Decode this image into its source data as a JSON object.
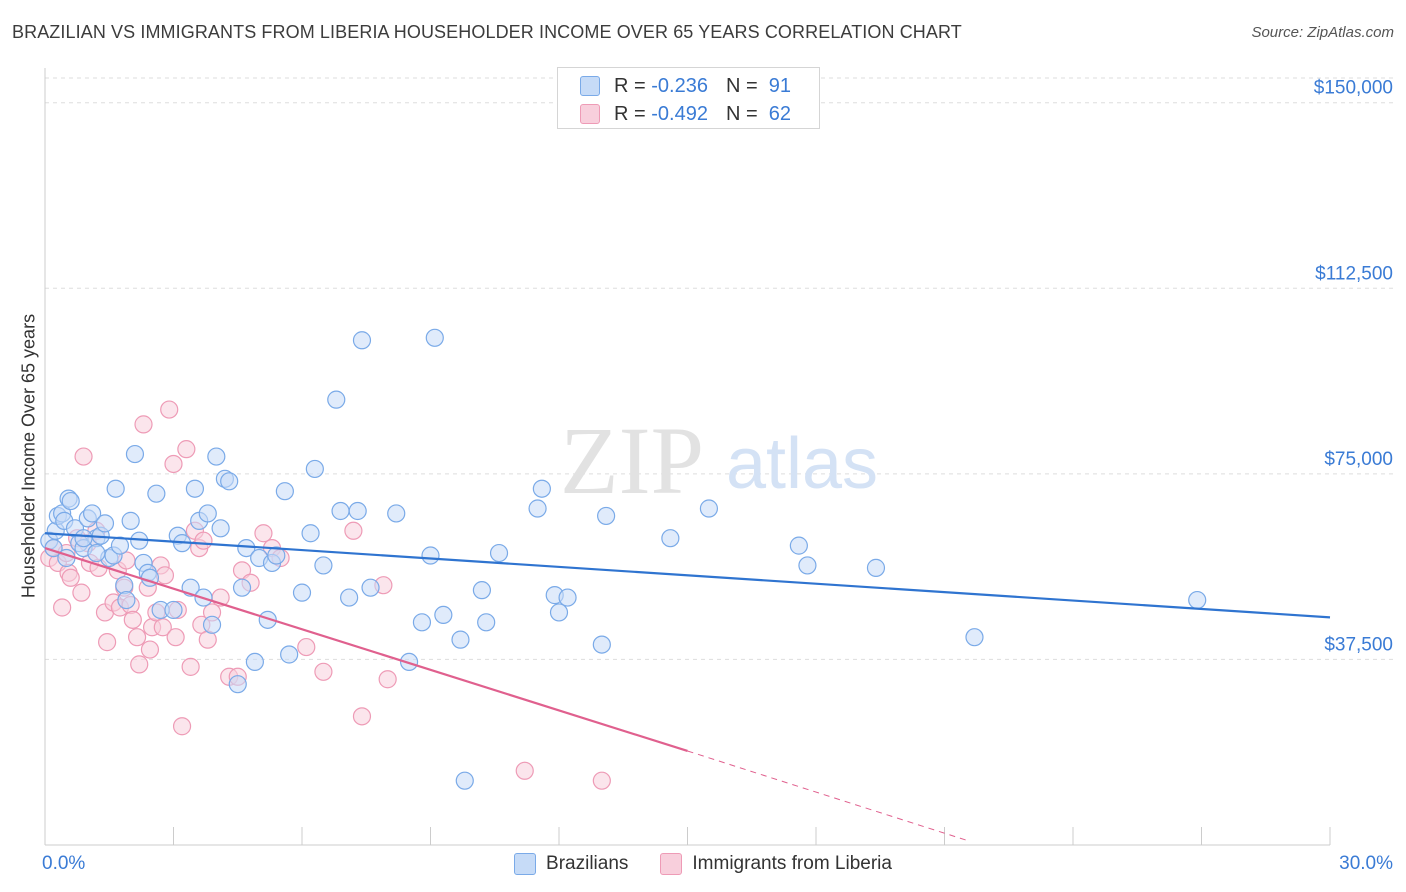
{
  "header": {
    "title": "BRAZILIAN VS IMMIGRANTS FROM LIBERIA HOUSEHOLDER INCOME OVER 65 YEARS CORRELATION CHART",
    "source": "Source: ZipAtlas.com"
  },
  "watermark": {
    "zip": "ZIP",
    "atlas": "atlas"
  },
  "legend": {
    "rows": [
      {
        "r_label": "R =",
        "r_value": "-0.236",
        "n_label": "N =",
        "n_value": "91"
      },
      {
        "r_label": "R =",
        "r_value": "-0.492",
        "n_label": "N =",
        "n_value": "62"
      }
    ]
  },
  "chart_data": {
    "type": "scatter",
    "title": "BRAZILIAN VS IMMIGRANTS FROM LIBERIA HOUSEHOLDER INCOME OVER 65 YEARS CORRELATION CHART",
    "ylabel": "Householder Income Over 65 years",
    "xlabel": "",
    "xlim": [
      0,
      30
    ],
    "ylim": [
      0,
      155000
    ],
    "x_tick_labels": [
      "0.0%",
      "30.0%"
    ],
    "y_ticks": [
      37500,
      75000,
      112500,
      150000
    ],
    "y_tick_labels": [
      "$37,500",
      "$75,000",
      "$112,500",
      "$150,000"
    ],
    "grid": true,
    "legend_position": "bottom-center",
    "series": [
      {
        "name": "Brazilians",
        "color": "#7aaae8",
        "fill": "#c6dbf7",
        "line_color": "#2f74d0",
        "R": -0.236,
        "N": 91,
        "trend": {
          "x0": 0,
          "y0": 63000,
          "x1": 30,
          "y1": 46000
        },
        "points": [
          [
            0.1,
            61500
          ],
          [
            0.2,
            60000
          ],
          [
            0.25,
            63500
          ],
          [
            0.3,
            66500
          ],
          [
            0.4,
            67000
          ],
          [
            0.45,
            65500
          ],
          [
            0.5,
            58000
          ],
          [
            0.55,
            70000
          ],
          [
            0.6,
            69500
          ],
          [
            0.7,
            64000
          ],
          [
            0.8,
            61000
          ],
          [
            0.9,
            60000
          ],
          [
            1.0,
            66000
          ],
          [
            1.1,
            67000
          ],
          [
            1.2,
            62000
          ],
          [
            1.3,
            62500
          ],
          [
            1.4,
            65000
          ],
          [
            1.5,
            58000
          ],
          [
            1.6,
            58500
          ],
          [
            1.65,
            72000
          ],
          [
            1.75,
            60500
          ],
          [
            1.85,
            52500
          ],
          [
            1.9,
            49500
          ],
          [
            2.0,
            65500
          ],
          [
            2.1,
            79000
          ],
          [
            2.2,
            61500
          ],
          [
            2.3,
            57000
          ],
          [
            2.4,
            55000
          ],
          [
            2.45,
            54000
          ],
          [
            2.6,
            71000
          ],
          [
            2.7,
            47500
          ],
          [
            3.0,
            47500
          ],
          [
            3.1,
            62500
          ],
          [
            3.2,
            61000
          ],
          [
            3.4,
            52000
          ],
          [
            3.5,
            72000
          ],
          [
            3.6,
            65500
          ],
          [
            3.7,
            50000
          ],
          [
            3.8,
            67000
          ],
          [
            3.9,
            44500
          ],
          [
            4.0,
            78500
          ],
          [
            4.1,
            64000
          ],
          [
            4.2,
            74000
          ],
          [
            4.3,
            73500
          ],
          [
            4.5,
            32500
          ],
          [
            4.6,
            52000
          ],
          [
            4.7,
            60000
          ],
          [
            4.9,
            37000
          ],
          [
            5.0,
            58000
          ],
          [
            5.2,
            45500
          ],
          [
            5.3,
            57000
          ],
          [
            5.4,
            58500
          ],
          [
            5.6,
            71500
          ],
          [
            5.7,
            38500
          ],
          [
            6.0,
            51000
          ],
          [
            6.2,
            63000
          ],
          [
            6.3,
            76000
          ],
          [
            6.5,
            56500
          ],
          [
            6.8,
            90000
          ],
          [
            6.9,
            67500
          ],
          [
            7.1,
            50000
          ],
          [
            7.3,
            67500
          ],
          [
            7.4,
            102000
          ],
          [
            7.6,
            52000
          ],
          [
            8.2,
            67000
          ],
          [
            8.5,
            37000
          ],
          [
            8.8,
            45000
          ],
          [
            9.0,
            58500
          ],
          [
            9.1,
            102500
          ],
          [
            9.3,
            46500
          ],
          [
            9.7,
            41500
          ],
          [
            10.2,
            51500
          ],
          [
            10.3,
            45000
          ],
          [
            10.6,
            59000
          ],
          [
            11.5,
            68000
          ],
          [
            11.6,
            72000
          ],
          [
            11.9,
            50500
          ],
          [
            12.0,
            47000
          ],
          [
            12.2,
            50000
          ],
          [
            13.0,
            40500
          ],
          [
            13.1,
            66500
          ],
          [
            14.6,
            62000
          ],
          [
            15.5,
            68000
          ],
          [
            17.6,
            60500
          ],
          [
            17.8,
            56500
          ],
          [
            19.4,
            56000
          ],
          [
            21.7,
            42000
          ],
          [
            26.9,
            49500
          ],
          [
            9.8,
            13000
          ],
          [
            1.2,
            59000
          ],
          [
            0.9,
            62000
          ]
        ]
      },
      {
        "name": "Immigrants from Liberia",
        "color": "#ee9bb6",
        "fill": "#f8cfdc",
        "line_color": "#e0608e",
        "R": -0.492,
        "N": 62,
        "trend": {
          "x0": 0,
          "y0": 60000,
          "x1": 15,
          "y1": 19000,
          "dash_x1": 21.5,
          "dash_y1": 1000
        },
        "points": [
          [
            0.1,
            58000
          ],
          [
            0.2,
            60000
          ],
          [
            0.3,
            57000
          ],
          [
            0.4,
            48000
          ],
          [
            0.5,
            59000
          ],
          [
            0.55,
            55000
          ],
          [
            0.6,
            54000
          ],
          [
            0.75,
            62000
          ],
          [
            0.85,
            51000
          ],
          [
            0.9,
            78500
          ],
          [
            1.0,
            61000
          ],
          [
            1.05,
            57000
          ],
          [
            1.2,
            63500
          ],
          [
            1.25,
            56000
          ],
          [
            1.4,
            47000
          ],
          [
            1.45,
            41000
          ],
          [
            1.6,
            49000
          ],
          [
            1.7,
            55500
          ],
          [
            1.75,
            48000
          ],
          [
            1.85,
            52000
          ],
          [
            1.9,
            57500
          ],
          [
            2.0,
            48500
          ],
          [
            2.05,
            45500
          ],
          [
            2.15,
            42000
          ],
          [
            2.2,
            36500
          ],
          [
            2.3,
            85000
          ],
          [
            2.4,
            52000
          ],
          [
            2.45,
            39500
          ],
          [
            2.5,
            44000
          ],
          [
            2.6,
            47000
          ],
          [
            2.7,
            56500
          ],
          [
            2.75,
            44000
          ],
          [
            2.8,
            54500
          ],
          [
            2.9,
            88000
          ],
          [
            3.0,
            77000
          ],
          [
            3.05,
            42000
          ],
          [
            3.1,
            47500
          ],
          [
            3.2,
            24000
          ],
          [
            3.3,
            80000
          ],
          [
            3.4,
            36000
          ],
          [
            3.5,
            63500
          ],
          [
            3.6,
            60000
          ],
          [
            3.65,
            44500
          ],
          [
            3.7,
            61500
          ],
          [
            3.8,
            41500
          ],
          [
            3.9,
            47000
          ],
          [
            4.1,
            50000
          ],
          [
            4.3,
            34000
          ],
          [
            4.5,
            34000
          ],
          [
            4.6,
            55500
          ],
          [
            4.8,
            53000
          ],
          [
            5.1,
            63000
          ],
          [
            5.3,
            60000
          ],
          [
            5.5,
            58000
          ],
          [
            6.1,
            40000
          ],
          [
            6.5,
            35000
          ],
          [
            7.2,
            63500
          ],
          [
            7.4,
            26000
          ],
          [
            7.9,
            52500
          ],
          [
            8.0,
            33500
          ],
          [
            11.2,
            15000
          ],
          [
            13.0,
            13000
          ]
        ]
      }
    ]
  },
  "bottom_legend": {
    "items": [
      {
        "label": "Brazilians"
      },
      {
        "label": "Immigrants from Liberia"
      }
    ]
  }
}
